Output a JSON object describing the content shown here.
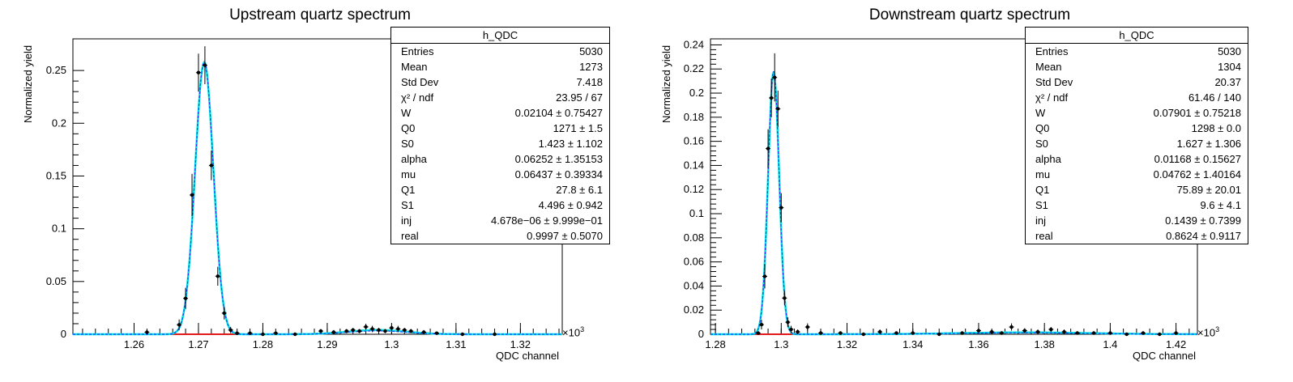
{
  "colors": {
    "fit": "#00e5e5",
    "model": "#1a3cff",
    "bkg": "#e31a1c",
    "points": "#000000"
  },
  "chart_data": [
    {
      "type": "scatter",
      "title": "Upstream quartz spectrum",
      "xlabel": "QDC channel",
      "ylabel": "Normalized yield",
      "x_multiplier": "×10",
      "x_multiplier_exp": "3",
      "xlim": [
        1.2505,
        1.3265
      ],
      "ylim": [
        0,
        0.28
      ],
      "xticks": [
        1.26,
        1.27,
        1.28,
        1.29,
        1.3,
        1.31,
        1.32
      ],
      "xtick_labels": [
        "1.26",
        "1.27",
        "1.28",
        "1.29",
        "1.3",
        "1.31",
        "1.32"
      ],
      "yticks": [
        0,
        0.05,
        0.1,
        0.15,
        0.2,
        0.25
      ],
      "ytick_labels": [
        "0",
        "0.05",
        "0.1",
        "0.15",
        "0.2",
        "0.25"
      ],
      "points": {
        "x": [
          1.262,
          1.267,
          1.268,
          1.269,
          1.27,
          1.271,
          1.272,
          1.273,
          1.274,
          1.275,
          1.276,
          1.278,
          1.28,
          1.282,
          1.285,
          1.289,
          1.291,
          1.293,
          1.294,
          1.295,
          1.296,
          1.297,
          1.298,
          1.299,
          1.3,
          1.301,
          1.302,
          1.303,
          1.305,
          1.307,
          1.311,
          1.316
        ],
        "y": [
          0.002,
          0.009,
          0.034,
          0.132,
          0.248,
          0.255,
          0.16,
          0.055,
          0.02,
          0.004,
          0.001,
          0.001,
          0.0,
          0.001,
          0.0,
          0.003,
          0.002,
          0.003,
          0.004,
          0.003,
          0.007,
          0.005,
          0.004,
          0.003,
          0.006,
          0.005,
          0.004,
          0.003,
          0.002,
          0.001,
          0.0,
          0.0
        ],
        "yerr": [
          0.002,
          0.005,
          0.01,
          0.02,
          0.018,
          0.018,
          0.014,
          0.009,
          0.006,
          0.003,
          0.001,
          0.001,
          0.0,
          0.001,
          0.0,
          0.002,
          0.002,
          0.002,
          0.002,
          0.002,
          0.003,
          0.003,
          0.002,
          0.002,
          0.003,
          0.003,
          0.002,
          0.002,
          0.002,
          0.001,
          0.0,
          0.0
        ]
      },
      "fit": {
        "amp": 0.258,
        "mu": 1.2709,
        "sigma": 0.00142,
        "bkg_amp": 0.004,
        "bkg_mu": 1.2978,
        "bkg_sigma": 0.0045
      },
      "stats": {
        "name": "h_QDC",
        "rows": [
          [
            "Entries",
            "5030"
          ],
          [
            "Mean",
            "1273"
          ],
          [
            "Std Dev",
            "7.418"
          ],
          [
            "χ² / ndf",
            "23.95 / 67"
          ],
          [
            "W",
            "0.02104 ± 0.75427"
          ],
          [
            "Q0",
            "1271 ± 1.5"
          ],
          [
            "S0",
            "1.423 ± 1.102"
          ],
          [
            "alpha",
            "0.06252 ± 1.35153"
          ],
          [
            "mu",
            "0.06437 ± 0.39334"
          ],
          [
            "Q1",
            "27.8 ± 6.1"
          ],
          [
            "S1",
            "4.496 ± 0.942"
          ],
          [
            "inj",
            "4.678e−06 ± 9.999e−01"
          ],
          [
            "real",
            "0.9997 ± 0.5070"
          ]
        ]
      }
    },
    {
      "type": "scatter",
      "title": "Downstream quartz spectrum",
      "xlabel": "QDC channel",
      "ylabel": "Normalized yield",
      "x_multiplier": "×10",
      "x_multiplier_exp": "3",
      "xlim": [
        1.2785,
        1.4265
      ],
      "ylim": [
        0,
        0.245
      ],
      "xticks": [
        1.28,
        1.3,
        1.32,
        1.34,
        1.36,
        1.38,
        1.4,
        1.42
      ],
      "xtick_labels": [
        "1.28",
        "1.3",
        "1.32",
        "1.34",
        "1.36",
        "1.38",
        "1.4",
        "1.42"
      ],
      "yticks": [
        0,
        0.02,
        0.04,
        0.06,
        0.08,
        0.1,
        0.12,
        0.14,
        0.16,
        0.18,
        0.2,
        0.22,
        0.24
      ],
      "ytick_labels": [
        "0",
        "0.02",
        "0.04",
        "0.06",
        "0.08",
        "0.1",
        "0.12",
        "0.14",
        "0.16",
        "0.18",
        "0.2",
        "0.22",
        "0.24"
      ],
      "points": {
        "x": [
          1.293,
          1.294,
          1.295,
          1.296,
          1.297,
          1.298,
          1.299,
          1.3,
          1.301,
          1.302,
          1.303,
          1.305,
          1.308,
          1.312,
          1.318,
          1.325,
          1.33,
          1.335,
          1.34,
          1.348,
          1.355,
          1.36,
          1.364,
          1.367,
          1.37,
          1.374,
          1.378,
          1.382,
          1.386,
          1.39,
          1.395,
          1.4,
          1.405,
          1.41,
          1.415,
          1.42
        ],
        "y": [
          0.001,
          0.008,
          0.048,
          0.154,
          0.196,
          0.213,
          0.187,
          0.105,
          0.03,
          0.01,
          0.004,
          0.002,
          0.006,
          0.001,
          0.001,
          0.0,
          0.002,
          0.001,
          0.001,
          0.0,
          0.001,
          0.003,
          0.002,
          0.001,
          0.006,
          0.003,
          0.002,
          0.004,
          0.002,
          0.001,
          0.001,
          0.001,
          0.0,
          0.001,
          0.0,
          0.001
        ],
        "yerr": [
          0.001,
          0.004,
          0.01,
          0.016,
          0.016,
          0.02,
          0.015,
          0.012,
          0.006,
          0.004,
          0.003,
          0.002,
          0.003,
          0.001,
          0.001,
          0.0,
          0.002,
          0.001,
          0.001,
          0.0,
          0.001,
          0.002,
          0.002,
          0.001,
          0.003,
          0.002,
          0.002,
          0.002,
          0.002,
          0.001,
          0.001,
          0.001,
          0.0,
          0.001,
          0.0,
          0.001
        ]
      },
      "fit": {
        "amp": 0.218,
        "mu": 1.2977,
        "sigma": 0.00168,
        "bkg_amp": 0.0015,
        "bkg_mu": 1.374,
        "bkg_sigma": 0.02
      },
      "stats": {
        "name": "h_QDC",
        "rows": [
          [
            "Entries",
            "5030"
          ],
          [
            "Mean",
            "1304"
          ],
          [
            "Std Dev",
            "20.37"
          ],
          [
            "χ² / ndf",
            "61.46 / 140"
          ],
          [
            "W",
            "0.07901 ± 0.75218"
          ],
          [
            "Q0",
            "1298 ± 0.0"
          ],
          [
            "S0",
            "1.627 ± 1.306"
          ],
          [
            "alpha",
            "0.01168 ± 0.15627"
          ],
          [
            "mu",
            "0.04762 ± 1.40164"
          ],
          [
            "Q1",
            "75.89 ± 20.01"
          ],
          [
            "S1",
            "9.6 ± 4.1"
          ],
          [
            "inj",
            "0.1439 ± 0.7399"
          ],
          [
            "real",
            "0.8624 ± 0.9117"
          ]
        ]
      }
    }
  ]
}
